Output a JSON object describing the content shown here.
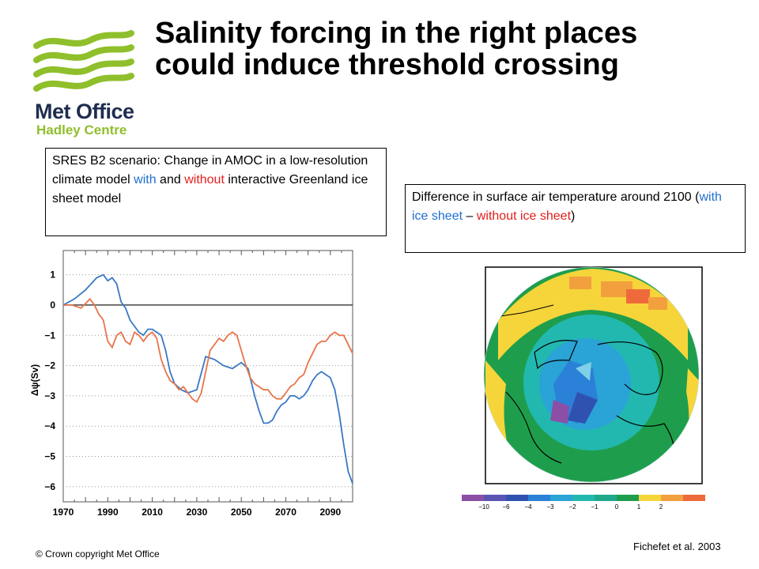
{
  "logo": {
    "line1": "Met Office",
    "line2": "Hadley Centre",
    "brand_green": "#8fbf2b",
    "brand_navy": "#1f2d4f"
  },
  "title": {
    "line1": "Salinity forcing in the right places",
    "line2": "could induce threshold crossing"
  },
  "caption_left": {
    "part1": "SRES B2 scenario: Change in AMOC in a low-resolution climate model ",
    "with": "with",
    "part2": " and ",
    "without": "without",
    "part3": " interactive Greenland ice sheet model"
  },
  "caption_right": {
    "part1": "Difference in surface air temperature around 2100 (",
    "with": "with ice sheet",
    "dash": " – ",
    "without": "without ice sheet",
    "part2": ")"
  },
  "chart_data": [
    {
      "type": "line",
      "ylabel": "Δψ(Sv)",
      "xlim": [
        1970,
        2100
      ],
      "ylim": [
        -6.5,
        1.8
      ],
      "x_ticks": [
        "1970",
        "1990",
        "2010",
        "2030",
        "2050",
        "2070",
        "2090"
      ],
      "y_ticks": [
        "1",
        "0",
        "−1",
        "−2",
        "−3",
        "−4",
        "−5",
        "−6"
      ],
      "y_tick_values": [
        1,
        0,
        -1,
        -2,
        -3,
        -4,
        -5,
        -6
      ],
      "grid": "dotted-horizontal",
      "series": [
        {
          "color": "#3a78c4",
          "x": [
            1970,
            1975,
            1980,
            1985,
            1988,
            1990,
            1992,
            1994,
            1996,
            1998,
            2000,
            2002,
            2004,
            2006,
            2008,
            2010,
            2012,
            2014,
            2016,
            2018,
            2020,
            2023,
            2026,
            2030,
            2034,
            2038,
            2042,
            2046,
            2050,
            2053,
            2056,
            2058,
            2060,
            2062,
            2064,
            2066,
            2068,
            2070,
            2072,
            2074,
            2076,
            2078,
            2080,
            2082,
            2084,
            2086,
            2088,
            2090,
            2092,
            2094,
            2096,
            2098,
            2100
          ],
          "y": [
            0,
            0.2,
            0.5,
            0.9,
            1.0,
            0.8,
            0.9,
            0.7,
            0.1,
            -0.1,
            -0.5,
            -0.7,
            -0.9,
            -1.0,
            -0.8,
            -0.8,
            -0.9,
            -1.0,
            -1.5,
            -2.2,
            -2.6,
            -2.8,
            -2.9,
            -2.8,
            -1.7,
            -1.8,
            -2.0,
            -2.1,
            -1.9,
            -2.1,
            -3.0,
            -3.5,
            -3.9,
            -3.9,
            -3.8,
            -3.5,
            -3.3,
            -3.2,
            -3.0,
            -3.0,
            -3.1,
            -3.0,
            -2.8,
            -2.5,
            -2.3,
            -2.2,
            -2.3,
            -2.4,
            -2.8,
            -3.6,
            -4.6,
            -5.5,
            -5.9
          ]
        },
        {
          "color": "#e8744a",
          "x": [
            1970,
            1974,
            1978,
            1982,
            1984,
            1986,
            1988,
            1990,
            1992,
            1994,
            1996,
            1998,
            2000,
            2002,
            2004,
            2006,
            2008,
            2010,
            2012,
            2014,
            2016,
            2018,
            2020,
            2022,
            2024,
            2026,
            2028,
            2030,
            2032,
            2034,
            2036,
            2038,
            2040,
            2042,
            2044,
            2046,
            2048,
            2050,
            2052,
            2054,
            2056,
            2058,
            2060,
            2062,
            2064,
            2066,
            2068,
            2070,
            2072,
            2074,
            2076,
            2078,
            2080,
            2082,
            2084,
            2086,
            2088,
            2090,
            2092,
            2094,
            2096,
            2098,
            2100
          ],
          "y": [
            0,
            0,
            -0.1,
            0.2,
            0,
            -0.3,
            -0.5,
            -1.2,
            -1.4,
            -1.0,
            -0.9,
            -1.2,
            -1.3,
            -0.9,
            -1.0,
            -1.2,
            -1.0,
            -0.9,
            -1.1,
            -1.8,
            -2.2,
            -2.5,
            -2.6,
            -2.8,
            -2.7,
            -2.9,
            -3.1,
            -3.2,
            -2.9,
            -2.2,
            -1.5,
            -1.3,
            -1.1,
            -1.2,
            -1.0,
            -0.9,
            -1.0,
            -1.5,
            -2.0,
            -2.4,
            -2.6,
            -2.7,
            -2.8,
            -2.8,
            -3.0,
            -3.1,
            -3.1,
            -2.9,
            -2.7,
            -2.6,
            -2.4,
            -2.3,
            -1.9,
            -1.6,
            -1.3,
            -1.2,
            -1.2,
            -1.0,
            -0.9,
            -1.0,
            -1.0,
            -1.3,
            -1.6
          ]
        }
      ]
    },
    {
      "type": "heatmap",
      "projection": "polar-stereographic",
      "colorbar": {
        "ticks": [
          "−10",
          "−6",
          "−4",
          "−3",
          "−2",
          "−1",
          "0",
          "1",
          "2"
        ],
        "colors": [
          "#8b4fa6",
          "#5a55b5",
          "#2f52b0",
          "#2b80d8",
          "#2aa3d6",
          "#22b8b0",
          "#1fa88a",
          "#1e9e4c",
          "#f6d53a",
          "#f2a03d",
          "#ef6a3b"
        ]
      }
    }
  ],
  "footer": {
    "copyright": "© Crown copyright   Met Office",
    "citation": "Fichefet et al. 2003"
  }
}
